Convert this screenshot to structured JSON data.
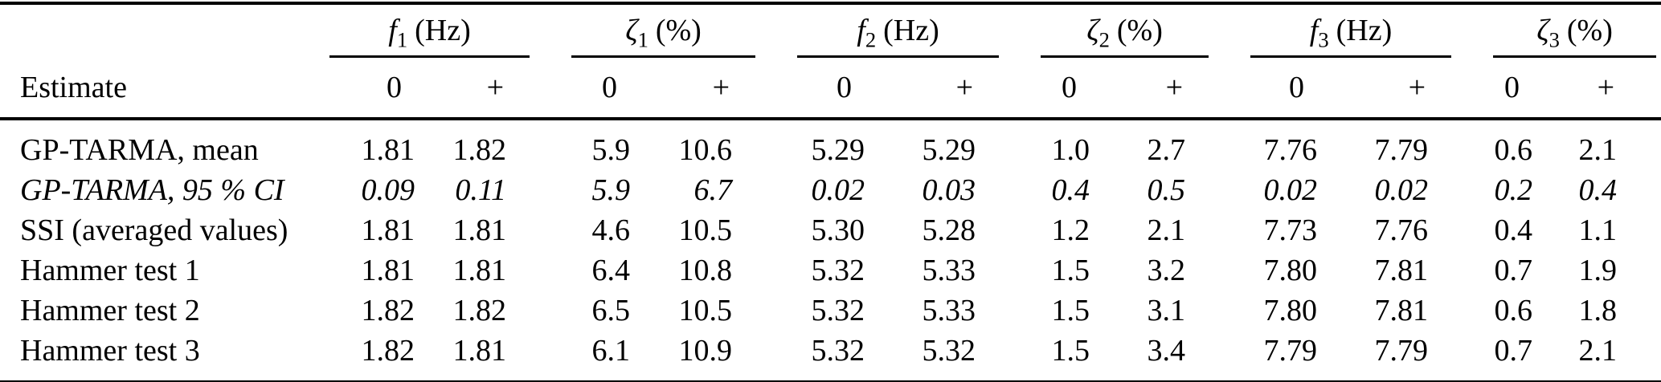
{
  "table": {
    "row_header_label": "Estimate",
    "zero_label": "0",
    "plus_label": "+",
    "groups": [
      {
        "symbol": "f",
        "sub": "1",
        "unit": "(Hz)"
      },
      {
        "symbol": "ζ",
        "sub": "1",
        "unit": "(%)"
      },
      {
        "symbol": "f",
        "sub": "2",
        "unit": "(Hz)"
      },
      {
        "symbol": "ζ",
        "sub": "2",
        "unit": "(%)"
      },
      {
        "symbol": "f",
        "sub": "3",
        "unit": "(Hz)"
      },
      {
        "symbol": "ζ",
        "sub": "3",
        "unit": "(%)"
      }
    ],
    "rows": [
      {
        "estimate": "GP-TARMA, mean",
        "italic": false,
        "values": [
          "1.81",
          "1.82",
          "5.9",
          "10.6",
          "5.29",
          "5.29",
          "1.0",
          "2.7",
          "7.76",
          "7.79",
          "0.6",
          "2.1"
        ]
      },
      {
        "estimate": "GP-TARMA, 95 % CI",
        "italic": true,
        "values": [
          "0.09",
          "0.11",
          "5.9",
          "6.7",
          "0.02",
          "0.03",
          "0.4",
          "0.5",
          "0.02",
          "0.02",
          "0.2",
          "0.4"
        ]
      },
      {
        "estimate": "SSI (averaged values)",
        "italic": false,
        "values": [
          "1.81",
          "1.81",
          "4.6",
          "10.5",
          "5.30",
          "5.28",
          "1.2",
          "2.1",
          "7.73",
          "7.76",
          "0.4",
          "1.1"
        ]
      },
      {
        "estimate": "Hammer test 1",
        "italic": false,
        "values": [
          "1.81",
          "1.81",
          "6.4",
          "10.8",
          "5.32",
          "5.33",
          "1.5",
          "3.2",
          "7.80",
          "7.81",
          "0.7",
          "1.9"
        ]
      },
      {
        "estimate": "Hammer test 2",
        "italic": false,
        "values": [
          "1.82",
          "1.82",
          "6.5",
          "10.5",
          "5.32",
          "5.33",
          "1.5",
          "3.1",
          "7.80",
          "7.81",
          "0.6",
          "1.8"
        ]
      },
      {
        "estimate": "Hammer test 3",
        "italic": false,
        "values": [
          "1.82",
          "1.81",
          "6.1",
          "10.9",
          "5.32",
          "5.32",
          "1.5",
          "3.4",
          "7.79",
          "7.79",
          "0.7",
          "2.1"
        ]
      }
    ]
  }
}
